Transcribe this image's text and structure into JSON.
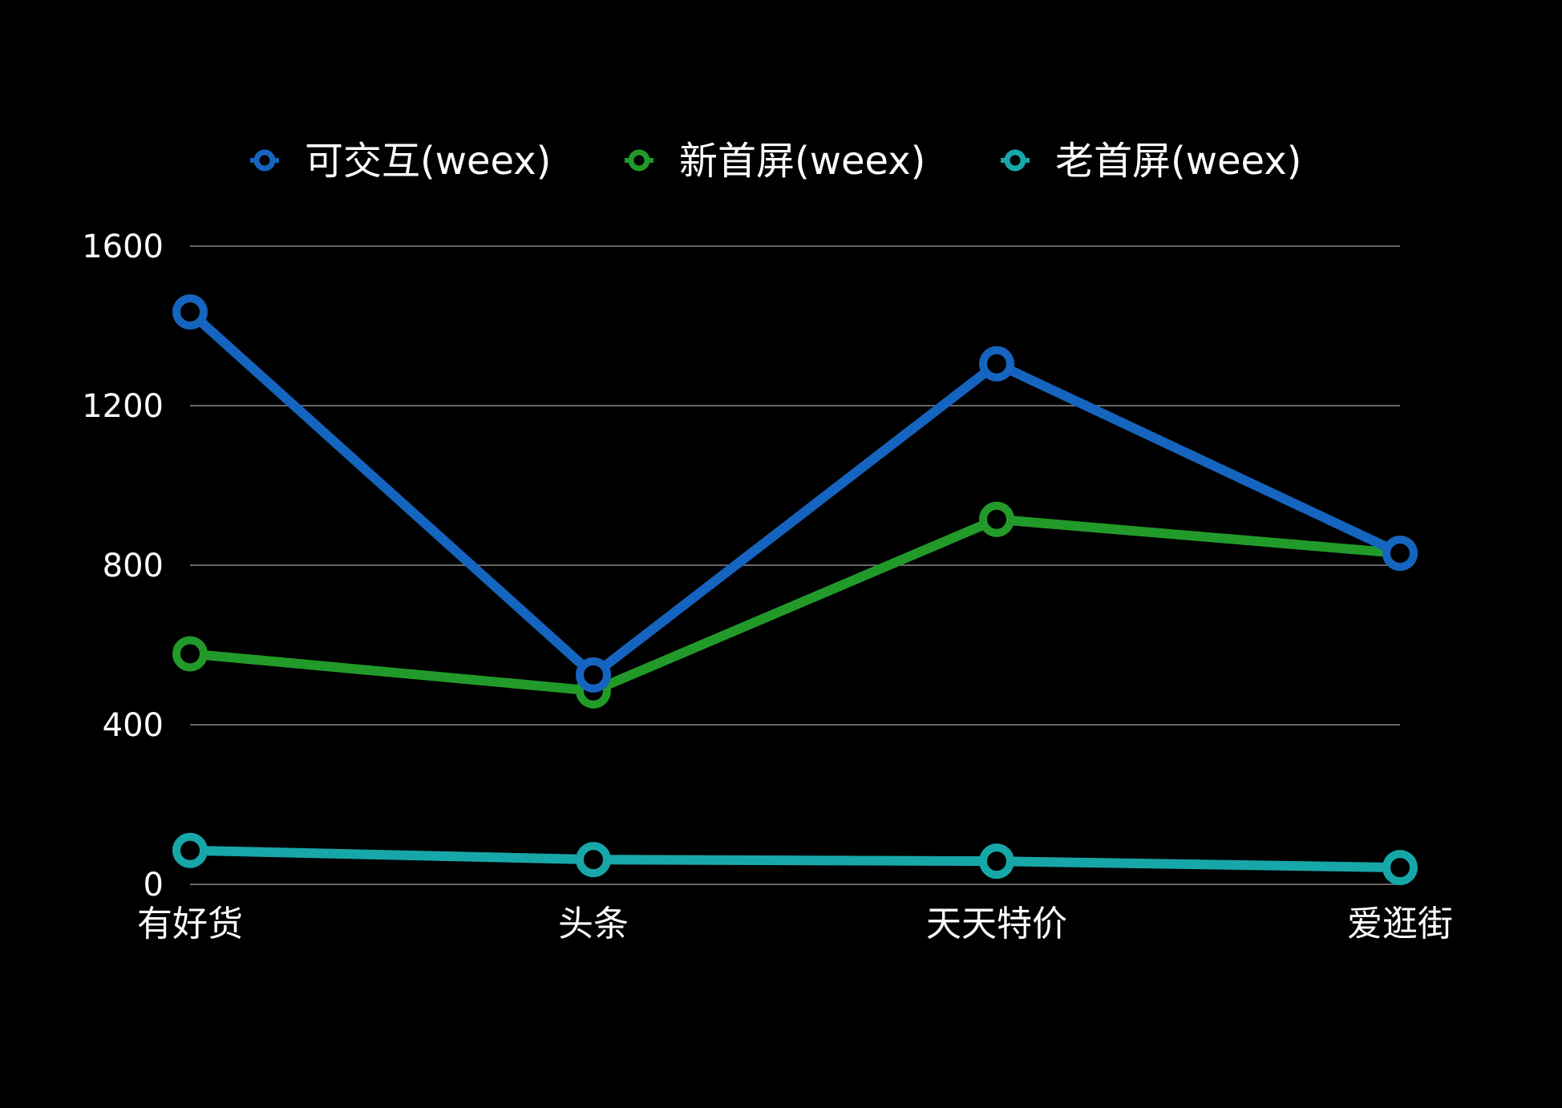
{
  "chart_data": {
    "type": "line",
    "title": "",
    "xlabel": "",
    "ylabel": "",
    "categories": [
      "有好货",
      "头条",
      "天天特价",
      "爱逛街"
    ],
    "ylim": [
      0,
      1600
    ],
    "yticks": [
      0,
      400,
      800,
      1200,
      1600
    ],
    "grid": true,
    "legend_position": "top",
    "series": [
      {
        "name": "可交互(weex)",
        "color": "#1565C0",
        "values": [
          1435,
          525,
          1305,
          830
        ]
      },
      {
        "name": "新首屏(weex)",
        "color": "#229A2A",
        "values": [
          578,
          485,
          915,
          830
        ]
      },
      {
        "name": "老首屏(weex)",
        "color": "#17A7A9",
        "values": [
          85,
          62,
          58,
          42
        ]
      }
    ],
    "background": "#000000",
    "text_color": "#FFFFFF",
    "grid_color": "#888888"
  }
}
